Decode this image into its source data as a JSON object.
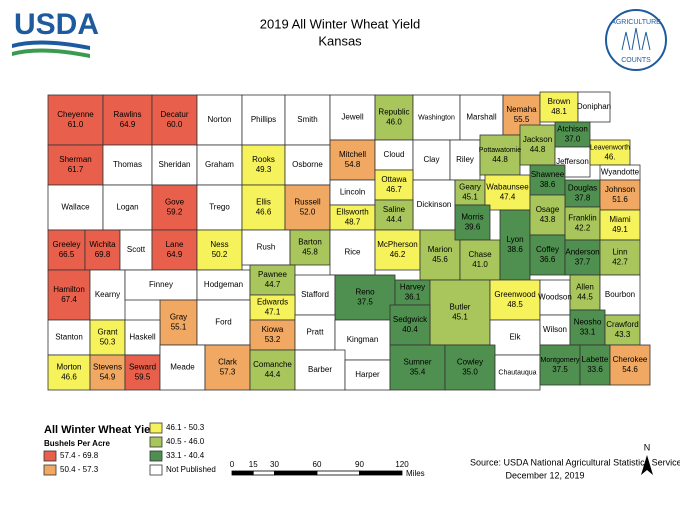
{
  "header": {
    "logo": "USDA",
    "title": "2019 All Winter Wheat Yield",
    "subtitle": "Kansas",
    "seal_top": "AGRICULTURE",
    "seal_bottom": "COUNTS"
  },
  "counties": [
    {
      "name": "Cheyenne",
      "value": "61.0",
      "class": 0
    },
    {
      "name": "Rawlins",
      "value": "64.9",
      "class": 0
    },
    {
      "name": "Decatur",
      "value": "60.0",
      "class": 0
    },
    {
      "name": "Norton",
      "value": null,
      "class": 5
    },
    {
      "name": "Phillips",
      "value": null,
      "class": 5
    },
    {
      "name": "Smith",
      "value": null,
      "class": 5
    },
    {
      "name": "Jewell",
      "value": null,
      "class": 5
    },
    {
      "name": "Republic",
      "value": "46.0",
      "class": 3
    },
    {
      "name": "Washington",
      "value": null,
      "class": 5
    },
    {
      "name": "Marshall",
      "value": null,
      "class": 5
    },
    {
      "name": "Nemaha",
      "value": "55.5",
      "class": 1
    },
    {
      "name": "Brown",
      "value": "48.1",
      "class": 2
    },
    {
      "name": "Doniphan",
      "value": null,
      "class": 5
    },
    {
      "name": "Sherman",
      "value": "61.7",
      "class": 0
    },
    {
      "name": "Thomas",
      "value": null,
      "class": 5
    },
    {
      "name": "Sheridan",
      "value": null,
      "class": 5
    },
    {
      "name": "Graham",
      "value": null,
      "class": 5
    },
    {
      "name": "Rooks",
      "value": "49.3",
      "class": 2
    },
    {
      "name": "Osborne",
      "value": null,
      "class": 5
    },
    {
      "name": "Mitchell",
      "value": "54.8",
      "class": 1
    },
    {
      "name": "Cloud",
      "value": null,
      "class": 5
    },
    {
      "name": "Clay",
      "value": null,
      "class": 5
    },
    {
      "name": "Riley",
      "value": null,
      "class": 5
    },
    {
      "name": "Pottawatomie",
      "value": "44.8",
      "class": 3
    },
    {
      "name": "Jackson",
      "value": "44.8",
      "class": 3
    },
    {
      "name": "Atchison",
      "value": "37.0",
      "class": 4
    },
    {
      "name": "Jefferson",
      "value": null,
      "class": 5
    },
    {
      "name": "Leavenworth",
      "value": "46.",
      "class": 2
    },
    {
      "name": "Wyandotte",
      "value": null,
      "class": 5
    },
    {
      "name": "Wallace",
      "value": null,
      "class": 5
    },
    {
      "name": "Logan",
      "value": null,
      "class": 5
    },
    {
      "name": "Gove",
      "value": "59.2",
      "class": 0
    },
    {
      "name": "Trego",
      "value": null,
      "class": 5
    },
    {
      "name": "Ellis",
      "value": "46.6",
      "class": 2
    },
    {
      "name": "Russell",
      "value": "52.0",
      "class": 1
    },
    {
      "name": "Lincoln",
      "value": null,
      "class": 5
    },
    {
      "name": "Ottawa",
      "value": "46.7",
      "class": 2
    },
    {
      "name": "Dickinson",
      "value": null,
      "class": 5
    },
    {
      "name": "Geary",
      "value": "45.1",
      "class": 3
    },
    {
      "name": "Wabaunsee",
      "value": "47.4",
      "class": 2
    },
    {
      "name": "Shawnee",
      "value": "38.6",
      "class": 4
    },
    {
      "name": "Douglas",
      "value": "37.8",
      "class": 4
    },
    {
      "name": "Johnson",
      "value": "51.6",
      "class": 1
    },
    {
      "name": "Ellsworth",
      "value": "48.7",
      "class": 2
    },
    {
      "name": "Saline",
      "value": "44.4",
      "class": 3
    },
    {
      "name": "Greeley",
      "value": "66.5",
      "class": 0
    },
    {
      "name": "Wichita",
      "value": "69.8",
      "class": 0
    },
    {
      "name": "Scott",
      "value": null,
      "class": 5
    },
    {
      "name": "Lane",
      "value": "64.9",
      "class": 0
    },
    {
      "name": "Ness",
      "value": "50.2",
      "class": 2
    },
    {
      "name": "Rush",
      "value": null,
      "class": 5
    },
    {
      "name": "Barton",
      "value": "45.8",
      "class": 3
    },
    {
      "name": "Rice",
      "value": null,
      "class": 5
    },
    {
      "name": "McPherson",
      "value": "46.2",
      "class": 2
    },
    {
      "name": "Marion",
      "value": "45.6",
      "class": 3
    },
    {
      "name": "Morris",
      "value": "39.6",
      "class": 4
    },
    {
      "name": "Chase",
      "value": "41.0",
      "class": 3
    },
    {
      "name": "Lyon",
      "value": "38.6",
      "class": 4
    },
    {
      "name": "Osage",
      "value": "43.8",
      "class": 3
    },
    {
      "name": "Franklin",
      "value": "42.2",
      "class": 3
    },
    {
      "name": "Miami",
      "value": "49.1",
      "class": 2
    },
    {
      "name": "Coffey",
      "value": "36.6",
      "class": 4
    },
    {
      "name": "Anderson",
      "value": "37.7",
      "class": 4
    },
    {
      "name": "Linn",
      "value": "42.7",
      "class": 3
    },
    {
      "name": "Hamilton",
      "value": "67.4",
      "class": 0
    },
    {
      "name": "Kearny",
      "value": null,
      "class": 5
    },
    {
      "name": "Finney",
      "value": null,
      "class": 5
    },
    {
      "name": "Hodgeman",
      "value": null,
      "class": 5
    },
    {
      "name": "Pawnee",
      "value": "44.7",
      "class": 3
    },
    {
      "name": "Stafford",
      "value": null,
      "class": 5
    },
    {
      "name": "Reno",
      "value": "37.5",
      "class": 4
    },
    {
      "name": "Harvey",
      "value": "36.1",
      "class": 4
    },
    {
      "name": "Butler",
      "value": "45.1",
      "class": 3
    },
    {
      "name": "Greenwood",
      "value": "48.5",
      "class": 2
    },
    {
      "name": "Woodson",
      "value": null,
      "class": 5
    },
    {
      "name": "Allen",
      "value": "44.5",
      "class": 3
    },
    {
      "name": "Bourbon",
      "value": null,
      "class": 5
    },
    {
      "name": "Edwards",
      "value": "47.1",
      "class": 2
    },
    {
      "name": "Gray",
      "value": "55.1",
      "class": 1
    },
    {
      "name": "Ford",
      "value": null,
      "class": 5
    },
    {
      "name": "Stanton",
      "value": null,
      "class": 5
    },
    {
      "name": "Grant",
      "value": "50.3",
      "class": 2
    },
    {
      "name": "Haskell",
      "value": null,
      "class": 5
    },
    {
      "name": "Kiowa",
      "value": "53.2",
      "class": 1
    },
    {
      "name": "Pratt",
      "value": null,
      "class": 5
    },
    {
      "name": "Kingman",
      "value": null,
      "class": 5
    },
    {
      "name": "Sedgwick",
      "value": "40.4",
      "class": 4
    },
    {
      "name": "Elk",
      "value": null,
      "class": 5
    },
    {
      "name": "Wilson",
      "value": null,
      "class": 5
    },
    {
      "name": "Neosho",
      "value": "33.1",
      "class": 4
    },
    {
      "name": "Crawford",
      "value": "43.3",
      "class": 3
    },
    {
      "name": "Morton",
      "value": "46.6",
      "class": 2
    },
    {
      "name": "Stevens",
      "value": "54.9",
      "class": 1
    },
    {
      "name": "Seward",
      "value": "59.5",
      "class": 0
    },
    {
      "name": "Meade",
      "value": null,
      "class": 5
    },
    {
      "name": "Clark",
      "value": "57.3",
      "class": 1
    },
    {
      "name": "Comanche",
      "value": "44.4",
      "class": 3
    },
    {
      "name": "Barber",
      "value": null,
      "class": 5
    },
    {
      "name": "Harper",
      "value": null,
      "class": 5
    },
    {
      "name": "Sumner",
      "value": "35.4",
      "class": 4
    },
    {
      "name": "Cowley",
      "value": "35.0",
      "class": 4
    },
    {
      "name": "Chautauqua",
      "value": null,
      "class": 5
    },
    {
      "name": "Montgomery",
      "value": "37.5",
      "class": 4
    },
    {
      "name": "Labette",
      "value": "33.6",
      "class": 4
    },
    {
      "name": "Cherokee",
      "value": "54.6",
      "class": 1
    }
  ],
  "legend": {
    "title": "All Winter Wheat Yield",
    "subtitle": "Bushels Per Acre",
    "items": [
      {
        "label": "57.4 - 69.8",
        "color": "#e8604c"
      },
      {
        "label": "50.4 - 57.3",
        "color": "#f0a862"
      },
      {
        "label": "46.1 - 50.3",
        "color": "#f6f25c"
      },
      {
        "label": "40.5 - 46.0",
        "color": "#a8c65c"
      },
      {
        "label": "33.1 - 40.4",
        "color": "#4f8f50"
      },
      {
        "label": "Not Published",
        "color": "#ffffff"
      }
    ]
  },
  "scale": {
    "ticks": [
      "0",
      "15",
      "30",
      "60",
      "90",
      "120"
    ],
    "unit": "Miles"
  },
  "source": "Source: USDA National Agricultural Statistics Service",
  "date": "December 12, 2019",
  "north": "N"
}
